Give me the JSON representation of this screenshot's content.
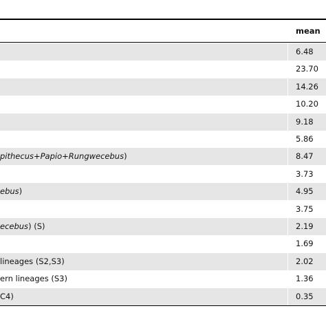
{
  "table": {
    "header": {
      "mean": "mean"
    },
    "rows": [
      {
        "mean": "6.48"
      },
      {
        "mean": "23.70"
      },
      {
        "mean": "14.26"
      },
      {
        "mean": "10.20"
      },
      {
        "mean": "9.18"
      },
      {
        "mean": "5.86"
      },
      {
        "label": [
          {
            "text": "pithecus+Papio+Rungwecebus",
            "italic": true
          },
          {
            "text": ")"
          }
        ],
        "mean": "8.47"
      },
      {
        "mean": "3.73"
      },
      {
        "label": [
          {
            "text": "ebus",
            "italic": true
          },
          {
            "text": ")"
          }
        ],
        "mean": "4.95"
      },
      {
        "mean": "3.75"
      },
      {
        "label": [
          {
            "text": "ecebus",
            "italic": true
          },
          {
            "text": ") (S)"
          }
        ],
        "mean": "2.19"
      },
      {
        "mean": "1.69"
      },
      {
        "label": [
          {
            "text": "lineages (S2,S3)"
          }
        ],
        "mean": "2.02"
      },
      {
        "label": [
          {
            "text": "ern lineages (S3)"
          }
        ],
        "mean": "1.36"
      },
      {
        "label": [
          {
            "text": "C4)"
          }
        ],
        "mean": "0.35"
      }
    ]
  }
}
